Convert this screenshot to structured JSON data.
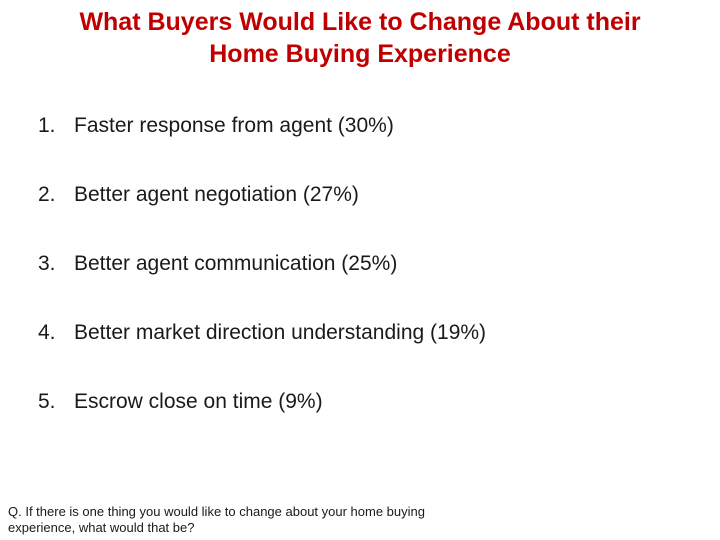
{
  "title": {
    "line1": "What Buyers Would Like to Change About their",
    "line2": "Home Buying Experience"
  },
  "items": [
    {
      "number": "1.",
      "text": "Faster response from agent (30%)"
    },
    {
      "number": "2.",
      "text": "Better agent negotiation (27%)"
    },
    {
      "number": "3.",
      "text": "Better agent communication (25%)"
    },
    {
      "number": "4.",
      "text": "Better market direction understanding (19%)"
    },
    {
      "number": "5.",
      "text": "Escrow close on time (9%)"
    }
  ],
  "footnote": {
    "line1": "Q. If there is one thing you would like to change about your home buying",
    "line2": "experience, what would that be?"
  },
  "colors": {
    "title": "#c00000",
    "text": "#1a1a1a",
    "background": "#ffffff"
  }
}
